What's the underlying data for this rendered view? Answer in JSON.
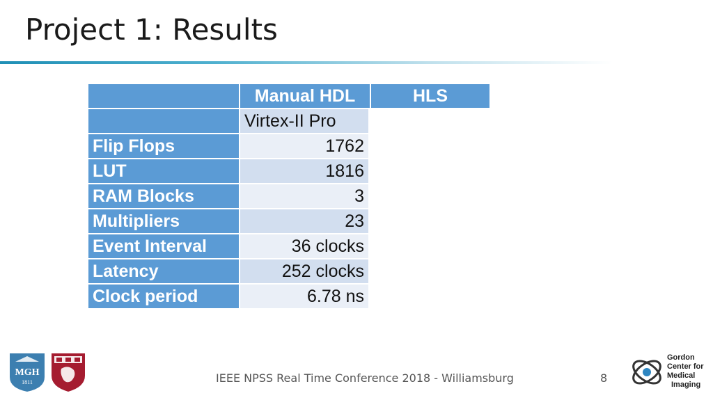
{
  "slide": {
    "title": "Project 1: Results"
  },
  "table": {
    "header": [
      "",
      "Manual HDL",
      "HLS"
    ],
    "subheader": [
      "",
      "Virtex-II Pro"
    ],
    "rows": [
      {
        "label": "Flip Flops",
        "value": "1762"
      },
      {
        "label": "LUT",
        "value": "1816"
      },
      {
        "label": "RAM Blocks",
        "value": "3"
      },
      {
        "label": "Multipliers",
        "value": "23"
      },
      {
        "label": "Event Interval",
        "value": "36 clocks"
      },
      {
        "label": "Latency",
        "value": "252 clocks"
      },
      {
        "label": "Clock period",
        "value": "6.78 ns"
      }
    ]
  },
  "footer": {
    "text": "IEEE NPSS Real Time Conference 2018 - Williamsburg",
    "page_number": "8"
  },
  "logos": {
    "mgh": {
      "text": "MGH",
      "year": "1811"
    },
    "gordon": {
      "lines": [
        "Gordon",
        "Center for",
        "Medical",
        "Imaging"
      ]
    }
  },
  "colors": {
    "header_blue": "#5b9bd5",
    "cell_dark": "#d2deef",
    "cell_light": "#eaeff7",
    "title_rule": "#1f8fb5"
  }
}
